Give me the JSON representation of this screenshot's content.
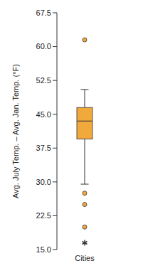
{
  "chart_data": {
    "type": "box",
    "y_label": "Avg. July Temp. – Avg. Jan. Temp. (°F)",
    "categories": [
      "Cities"
    ],
    "whisker_low": 29.5,
    "q1": 39.5,
    "median": 43.5,
    "q3": 46.5,
    "whisker_high": 50.5,
    "outliers": {
      "values": [
        61.5,
        27.5,
        25,
        20
      ],
      "marker": "circle"
    },
    "far_outliers": {
      "values": [
        16.5
      ],
      "marker": "star"
    },
    "color": "#f2a93b",
    "ylim": [
      15,
      67.5
    ],
    "yticks": [
      {
        "value": 15,
        "label": "15.0"
      },
      {
        "value": 22.5,
        "label": "22.5"
      },
      {
        "value": 30,
        "label": "30.0"
      },
      {
        "value": 37.5,
        "label": "37.5"
      },
      {
        "value": 45,
        "label": "45.0"
      },
      {
        "value": 52.5,
        "label": "52.5"
      },
      {
        "value": 60,
        "label": "60.0"
      },
      {
        "value": 67.5,
        "label": "67.5"
      }
    ]
  }
}
